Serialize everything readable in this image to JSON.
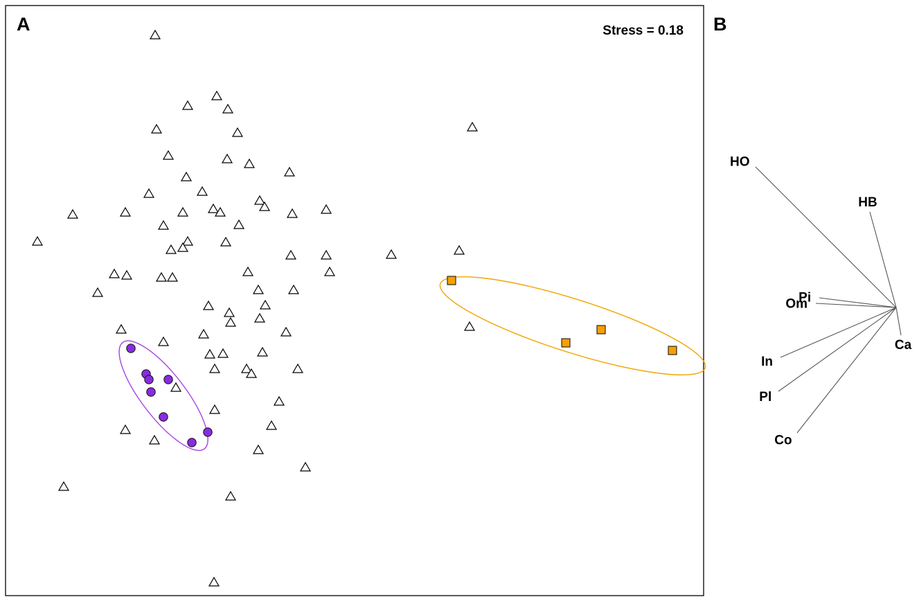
{
  "figure": {
    "panel_a_label": "A",
    "panel_b_label": "B",
    "stress_text": "Stress = 0.18"
  },
  "colors": {
    "frame": "#000000",
    "triangle_stroke": "#000000",
    "circle_fill": "#8a2be2",
    "circle_ellipse": "#a640e6",
    "square_fill": "#f5a000",
    "square_ellipse": "#f0a500",
    "vector": "#555555"
  },
  "chart_data": [
    {
      "type": "scatter",
      "panel": "A",
      "title": "",
      "xlabel": "",
      "ylabel": "",
      "xlim": [
        0,
        1000
      ],
      "ylim": [
        0,
        850
      ],
      "grid": false,
      "annotations": [
        "Stress = 0.18"
      ],
      "series": [
        {
          "marker": "triangle",
          "x": [
            216,
            305,
            263,
            321,
            218,
            335,
            235,
            320,
            352,
            261,
            410,
            207,
            284,
            97,
            173,
            256,
            300,
            310,
            367,
            374,
            414,
            463,
            228,
            337,
            46,
            263,
            256,
            318,
            239,
            412,
            463,
            557,
            655,
            157,
            175,
            225,
            241,
            350,
            468,
            133,
            365,
            416,
            293,
            323,
            375,
            367,
            325,
            167,
            286,
            405,
            228,
            371,
            295,
            314,
            246,
            302,
            348,
            355,
            422,
            395,
            302,
            173,
            215,
            384,
            365,
            433,
            84,
            325,
            301,
            674,
            670
          ],
          "y": [
            810,
            722,
            708,
            703,
            674,
            669,
            636,
            631,
            624,
            605,
            612,
            581,
            584,
            551,
            554,
            554,
            559,
            554,
            571,
            562,
            552,
            558,
            535,
            536,
            512,
            512,
            503,
            511,
            500,
            492,
            492,
            493,
            499,
            465,
            463,
            460,
            460,
            468,
            468,
            438,
            442,
            442,
            419,
            409,
            420,
            401,
            395,
            385,
            378,
            381,
            367,
            352,
            349,
            350,
            301,
            328,
            328,
            321,
            328,
            281,
            269,
            240,
            225,
            246,
            211,
            186,
            158,
            144,
            20,
            677,
            389
          ]
        },
        {
          "marker": "circle",
          "x": [
            181,
            203,
            207,
            235,
            210,
            228,
            292,
            269
          ],
          "y": [
            357,
            320,
            312,
            312,
            294,
            258,
            236,
            221
          ],
          "ellipse": true
        },
        {
          "marker": "square",
          "x": [
            644,
            809,
            860,
            963
          ],
          "y": [
            455,
            365,
            384,
            354
          ],
          "ellipse": true
        }
      ]
    },
    {
      "type": "biplot-vectors",
      "panel": "B",
      "origin": [
        0,
        0
      ],
      "vectors": [
        {
          "label": "HO",
          "x": -203,
          "y": 203
        },
        {
          "label": "HB",
          "x": -38,
          "y": 138
        },
        {
          "label": "Pi",
          "x": -111,
          "y": 14
        },
        {
          "label": "Om",
          "x": -116,
          "y": 6
        },
        {
          "label": "Ca",
          "x": 7,
          "y": -40
        },
        {
          "label": "In",
          "x": -167,
          "y": -72
        },
        {
          "label": "Pl",
          "x": -170,
          "y": -121
        },
        {
          "label": "Co",
          "x": -143,
          "y": -181
        }
      ]
    }
  ]
}
